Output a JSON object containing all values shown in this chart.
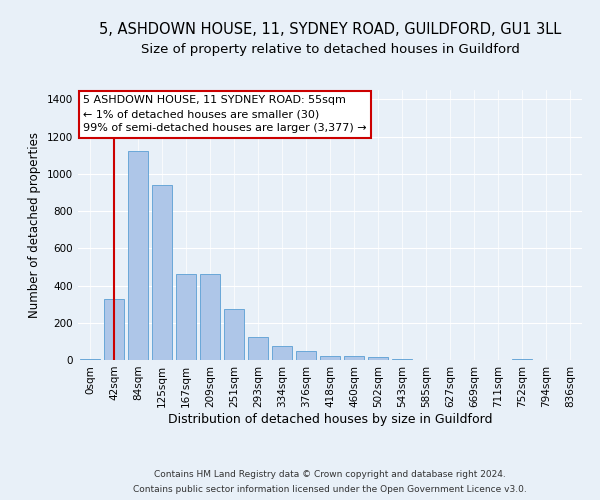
{
  "title1": "5, ASHDOWN HOUSE, 11, SYDNEY ROAD, GUILDFORD, GU1 3LL",
  "title2": "Size of property relative to detached houses in Guildford",
  "xlabel": "Distribution of detached houses by size in Guildford",
  "ylabel": "Number of detached properties",
  "footer1": "Contains HM Land Registry data © Crown copyright and database right 2024.",
  "footer2": "Contains public sector information licensed under the Open Government Licence v3.0.",
  "annotation_line1": "5 ASHDOWN HOUSE, 11 SYDNEY ROAD: 55sqm",
  "annotation_line2": "← 1% of detached houses are smaller (30)",
  "annotation_line3": "99% of semi-detached houses are larger (3,377) →",
  "bar_labels": [
    "0sqm",
    "42sqm",
    "84sqm",
    "125sqm",
    "167sqm",
    "209sqm",
    "251sqm",
    "293sqm",
    "334sqm",
    "376sqm",
    "418sqm",
    "460sqm",
    "502sqm",
    "543sqm",
    "585sqm",
    "627sqm",
    "669sqm",
    "711sqm",
    "752sqm",
    "794sqm",
    "836sqm"
  ],
  "bar_values": [
    5,
    330,
    1120,
    940,
    460,
    460,
    275,
    125,
    75,
    50,
    20,
    20,
    15,
    5,
    0,
    0,
    0,
    0,
    5,
    0,
    0
  ],
  "bar_color": "#aec6e8",
  "bar_edge_color": "#5a9fd4",
  "bg_color": "#e8f0f8",
  "plot_bg_color": "#e8f0f8",
  "grid_color": "#ffffff",
  "ylim": [
    0,
    1450
  ],
  "yticks": [
    0,
    200,
    400,
    600,
    800,
    1000,
    1200,
    1400
  ],
  "title1_fontsize": 10.5,
  "title2_fontsize": 9.5,
  "xlabel_fontsize": 9,
  "ylabel_fontsize": 8.5,
  "tick_fontsize": 7.5,
  "annotation_fontsize": 8,
  "footer_fontsize": 6.5,
  "red_line_color": "#cc0000",
  "annotation_box_color": "#ffffff",
  "annotation_border_color": "#cc0000"
}
